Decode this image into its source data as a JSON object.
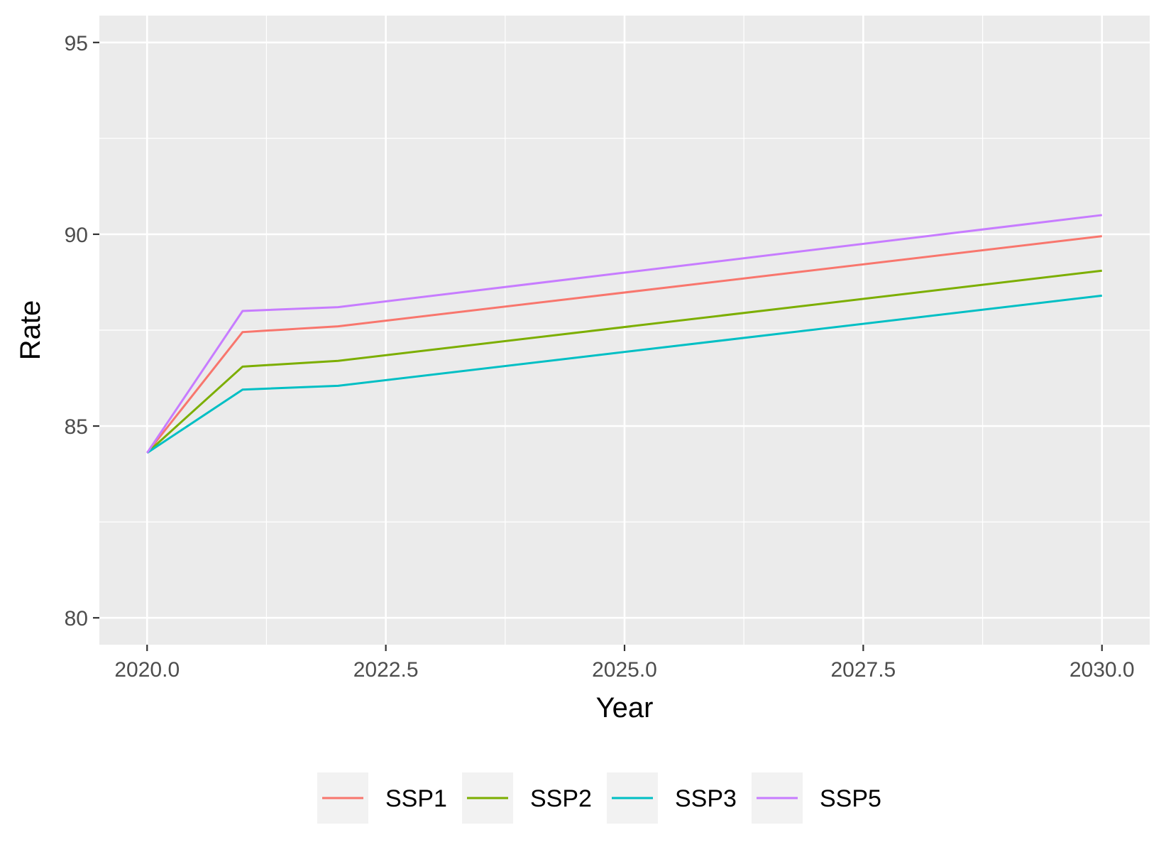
{
  "chart_data": {
    "type": "line",
    "xlabel": "Year",
    "ylabel": "Rate",
    "xlim": [
      2019.5,
      2030.5
    ],
    "ylim": [
      79.3,
      95.7
    ],
    "x_ticks": [
      2020.0,
      2022.5,
      2025.0,
      2027.5,
      2030.0
    ],
    "x_tick_labels": [
      "2020.0",
      "2022.5",
      "2025.0",
      "2027.5",
      "2030.0"
    ],
    "y_ticks": [
      80,
      85,
      90,
      95
    ],
    "y_tick_labels": [
      "80",
      "85",
      "90",
      "95"
    ],
    "x_minor_grid": [
      2021.25,
      2023.75,
      2026.25,
      2028.75
    ],
    "y_minor_grid": [
      82.5,
      87.5,
      92.5
    ],
    "grid": true,
    "panel_background": "#ebebeb",
    "grid_color": "#ffffff",
    "legend_position": "bottom",
    "x": [
      2020,
      2021,
      2022,
      2030
    ],
    "series": [
      {
        "name": "SSP1",
        "color": "#F8766D",
        "values": [
          84.3,
          87.45,
          87.6,
          89.95
        ]
      },
      {
        "name": "SSP2",
        "color": "#7CAE00",
        "values": [
          84.3,
          86.55,
          86.7,
          89.05
        ]
      },
      {
        "name": "SSP3",
        "color": "#00BFC4",
        "values": [
          84.3,
          85.95,
          86.05,
          88.4
        ]
      },
      {
        "name": "SSP5",
        "color": "#C77CFF",
        "values": [
          84.3,
          88.0,
          88.1,
          90.5
        ]
      }
    ]
  }
}
